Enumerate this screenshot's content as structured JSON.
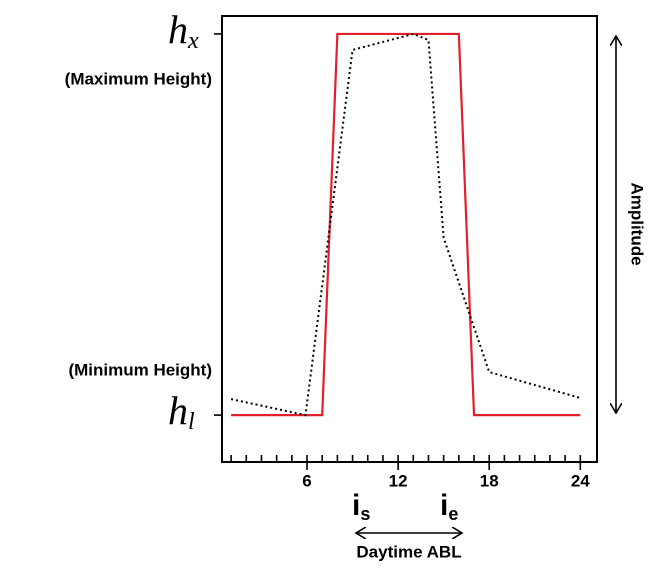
{
  "chart_data": {
    "type": "line",
    "xlim": [
      0.4,
      25.1
    ],
    "ylim": [
      -0.123,
      1.047
    ],
    "xticks": [
      6,
      12,
      18,
      24
    ],
    "xminorticks": [
      1,
      2,
      3,
      4,
      5,
      6,
      7,
      8,
      9,
      10,
      11,
      12,
      13,
      14,
      15,
      16,
      17,
      18,
      19,
      20,
      21,
      22,
      23,
      24
    ],
    "yticks": [
      {
        "value": 0,
        "label": "h",
        "subscript": "l"
      },
      {
        "value": 1,
        "label": "h",
        "subscript": "x"
      }
    ],
    "series": [
      {
        "color": "#e0202a",
        "style": "solid",
        "x": [
          1,
          7,
          8,
          16,
          17,
          24
        ],
        "values": [
          0,
          0,
          1,
          1,
          0,
          0
        ]
      },
      {
        "color": "#000000",
        "style": "dotted",
        "x": [
          1,
          5.9,
          9,
          13,
          14,
          15,
          18,
          24
        ],
        "values": [
          0.042,
          0,
          0.958,
          1,
          0.984,
          0.465,
          0.113,
          0.045
        ]
      }
    ],
    "annotations": {
      "max_label": "(Maximum Height)",
      "min_label": "(Minimum Height)",
      "amplitude": "Amplitude",
      "start": {
        "text": "i",
        "subscript": "s"
      },
      "end": {
        "text": "i",
        "subscript": "e"
      },
      "daytime": "Daytime ABL"
    }
  }
}
